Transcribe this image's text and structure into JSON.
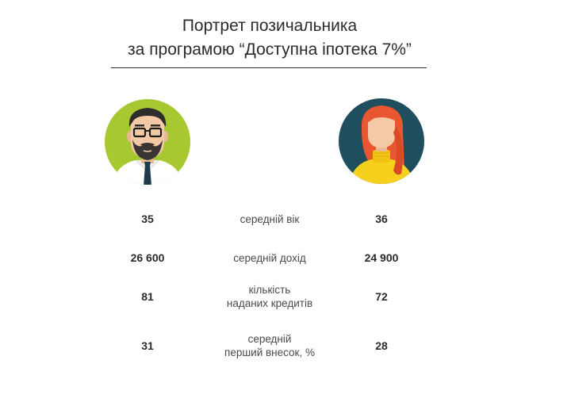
{
  "title": {
    "line1": "Портрет позичальника",
    "line2": "за програмою “Доступна іпотека 7%”"
  },
  "colors": {
    "male_bg": "#a8c832",
    "female_bg": "#1f4e5f",
    "skin": "#f4c9a6",
    "hair_female": "#e8572f",
    "sweater": "#f5d11e"
  },
  "icons": {
    "male": "man-with-glasses-beard-icon",
    "female": "red-haired-woman-icon"
  },
  "rows": [
    {
      "left": "35",
      "label": [
        "середній вік"
      ],
      "right": "36"
    },
    {
      "left": "26 600",
      "label": [
        "середній дохід"
      ],
      "right": "24 900"
    },
    {
      "left": "81",
      "label": [
        "кількість",
        "наданих кредитів"
      ],
      "right": "72"
    },
    {
      "left": "31",
      "label": [
        "середній",
        "перший внесок, %"
      ],
      "right": "28"
    }
  ]
}
